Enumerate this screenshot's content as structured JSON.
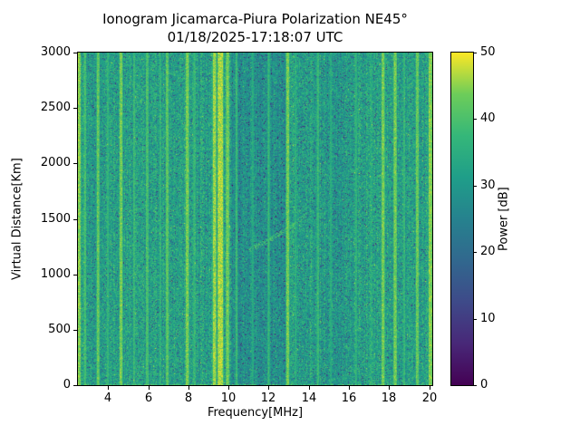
{
  "chart_data": {
    "type": "heatmap",
    "title": "Ionogram Jicamarca-Piura Polarization NE45°",
    "subtitle": "01/18/2025-17:18:07 UTC",
    "xlabel": "Frequency[MHz]",
    "ylabel": "Virtual Distance[Km]",
    "xlim": [
      2.5,
      20.15
    ],
    "ylim": [
      0,
      3000
    ],
    "xticks": [
      4,
      6,
      8,
      10,
      12,
      14,
      16,
      18,
      20
    ],
    "yticks": [
      0,
      500,
      1000,
      1500,
      2000,
      2500,
      3000
    ],
    "grid": false,
    "colorbar": {
      "label": "Power [dB]",
      "min": 0,
      "max": 50,
      "ticks": [
        0,
        10,
        20,
        30,
        40,
        50
      ],
      "colormap": "viridis"
    },
    "noise": {
      "base_db": 26,
      "range_db": 13,
      "column_jitter_db": 5,
      "dark_speckle_prob": 0.1,
      "dark_speckle_db": 14,
      "bright_speckle_prob": 0.07,
      "bright_speckle_db": 8
    },
    "rfi_stripes": [
      {
        "freq_mhz": 2.55,
        "width_mhz": 0.12,
        "power_db": 48
      },
      {
        "freq_mhz": 2.85,
        "width_mhz": 0.06,
        "power_db": 43
      },
      {
        "freq_mhz": 3.5,
        "width_mhz": 0.08,
        "power_db": 46
      },
      {
        "freq_mhz": 4.0,
        "width_mhz": 0.05,
        "power_db": 40
      },
      {
        "freq_mhz": 4.65,
        "width_mhz": 0.1,
        "power_db": 47
      },
      {
        "freq_mhz": 5.3,
        "width_mhz": 0.05,
        "power_db": 41
      },
      {
        "freq_mhz": 5.95,
        "width_mhz": 0.07,
        "power_db": 43
      },
      {
        "freq_mhz": 6.6,
        "width_mhz": 0.04,
        "power_db": 39
      },
      {
        "freq_mhz": 6.95,
        "width_mhz": 0.08,
        "power_db": 45
      },
      {
        "freq_mhz": 7.95,
        "width_mhz": 0.1,
        "power_db": 47
      },
      {
        "freq_mhz": 8.3,
        "width_mhz": 0.05,
        "power_db": 41
      },
      {
        "freq_mhz": 9.3,
        "width_mhz": 0.12,
        "power_db": 49
      },
      {
        "freq_mhz": 9.6,
        "width_mhz": 0.22,
        "power_db": 50
      },
      {
        "freq_mhz": 9.95,
        "width_mhz": 0.1,
        "power_db": 47
      },
      {
        "freq_mhz": 10.4,
        "width_mhz": 0.05,
        "power_db": 41
      },
      {
        "freq_mhz": 11.2,
        "width_mhz": 0.04,
        "power_db": 38
      },
      {
        "freq_mhz": 12.0,
        "width_mhz": 0.05,
        "power_db": 41
      },
      {
        "freq_mhz": 12.95,
        "width_mhz": 0.1,
        "power_db": 47
      },
      {
        "freq_mhz": 13.35,
        "width_mhz": 0.04,
        "power_db": 39
      },
      {
        "freq_mhz": 14.45,
        "width_mhz": 0.06,
        "power_db": 41
      },
      {
        "freq_mhz": 15.1,
        "width_mhz": 0.04,
        "power_db": 38
      },
      {
        "freq_mhz": 16.35,
        "width_mhz": 0.05,
        "power_db": 39
      },
      {
        "freq_mhz": 17.1,
        "width_mhz": 0.04,
        "power_db": 38
      },
      {
        "freq_mhz": 17.7,
        "width_mhz": 0.1,
        "power_db": 47
      },
      {
        "freq_mhz": 18.3,
        "width_mhz": 0.1,
        "power_db": 47
      },
      {
        "freq_mhz": 18.75,
        "width_mhz": 0.05,
        "power_db": 40
      },
      {
        "freq_mhz": 19.4,
        "width_mhz": 0.09,
        "power_db": 46
      },
      {
        "freq_mhz": 20.05,
        "width_mhz": 0.12,
        "power_db": 48
      }
    ],
    "dark_bands": [
      {
        "from_mhz": 10.15,
        "to_mhz": 12.85,
        "drop_db": 5
      },
      {
        "from_mhz": 14.6,
        "to_mhz": 16.2,
        "drop_db": 2
      }
    ],
    "echo_trace": {
      "from_mhz": 11.0,
      "from_km": 1220,
      "to_mhz": 13.9,
      "to_km": 1540,
      "half_width_km": 22,
      "power_db": 42,
      "density": 0.45
    },
    "ground_clutter": {
      "height_km": 12,
      "power_db": 44,
      "density": 0.5
    }
  }
}
